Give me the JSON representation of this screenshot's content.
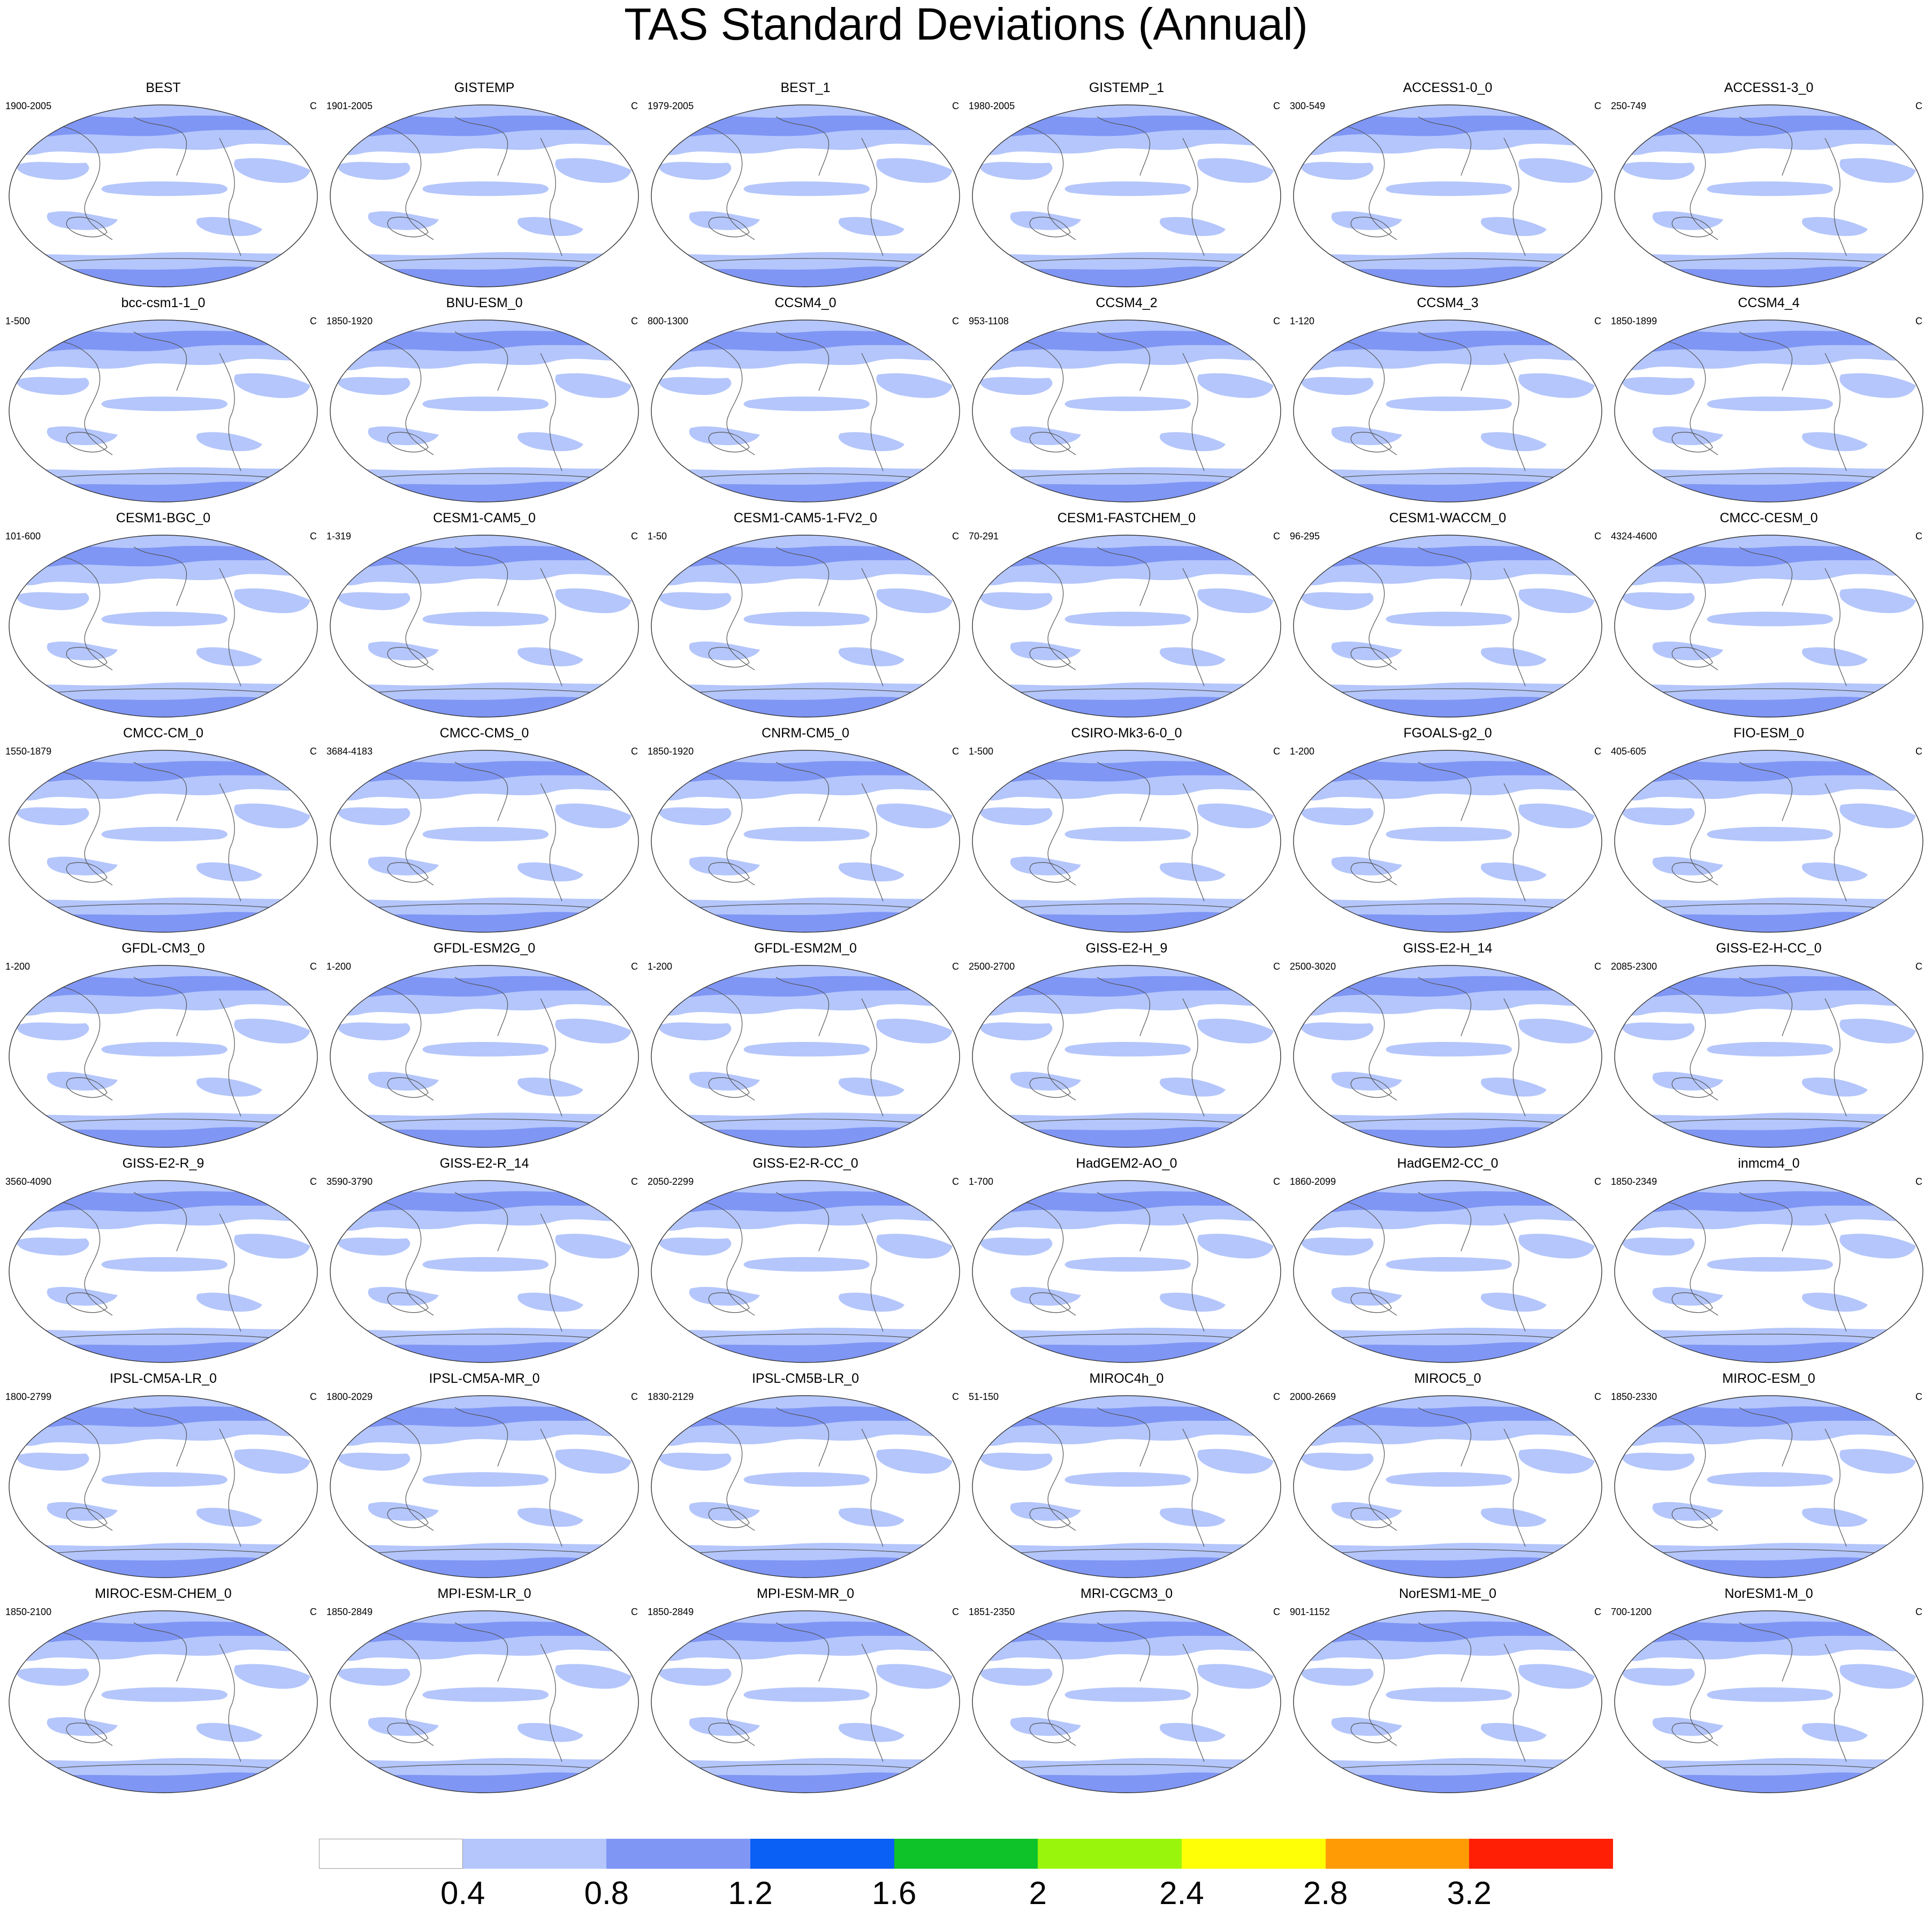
{
  "title": "TAS Standard Deviations (Annual)",
  "unit_label": "C",
  "colors": [
    "#ffffff",
    "#b4c6fb",
    "#7f96f5",
    "#0a5ff5",
    "#0ec22a",
    "#99f50c",
    "#ffff05",
    "#ff9b04",
    "#ff1f05"
  ],
  "colorbar_labels": [
    "0.4",
    "0.8",
    "1.2",
    "1.6",
    "2",
    "2.4",
    "2.8",
    "3.2"
  ],
  "panels": [
    {
      "name": "BEST",
      "period": "1900-2005"
    },
    {
      "name": "GISTEMP",
      "period": "1901-2005"
    },
    {
      "name": "BEST_1",
      "period": "1979-2005"
    },
    {
      "name": "GISTEMP_1",
      "period": "1980-2005"
    },
    {
      "name": "ACCESS1-0_0",
      "period": "300-549"
    },
    {
      "name": "ACCESS1-3_0",
      "period": "250-749"
    },
    {
      "name": "bcc-csm1-1_0",
      "period": "1-500"
    },
    {
      "name": "BNU-ESM_0",
      "period": "1850-1920"
    },
    {
      "name": "CCSM4_0",
      "period": "800-1300"
    },
    {
      "name": "CCSM4_2",
      "period": "953-1108"
    },
    {
      "name": "CCSM4_3",
      "period": "1-120"
    },
    {
      "name": "CCSM4_4",
      "period": "1850-1899"
    },
    {
      "name": "CESM1-BGC_0",
      "period": "101-600"
    },
    {
      "name": "CESM1-CAM5_0",
      "period": "1-319"
    },
    {
      "name": "CESM1-CAM5-1-FV2_0",
      "period": "1-50"
    },
    {
      "name": "CESM1-FASTCHEM_0",
      "period": "70-291"
    },
    {
      "name": "CESM1-WACCM_0",
      "period": "96-295"
    },
    {
      "name": "CMCC-CESM_0",
      "period": "4324-4600"
    },
    {
      "name": "CMCC-CM_0",
      "period": "1550-1879"
    },
    {
      "name": "CMCC-CMS_0",
      "period": "3684-4183"
    },
    {
      "name": "CNRM-CM5_0",
      "period": "1850-1920"
    },
    {
      "name": "CSIRO-Mk3-6-0_0",
      "period": "1-500"
    },
    {
      "name": "FGOALS-g2_0",
      "period": "1-200"
    },
    {
      "name": "FIO-ESM_0",
      "period": "405-605"
    },
    {
      "name": "GFDL-CM3_0",
      "period": "1-200"
    },
    {
      "name": "GFDL-ESM2G_0",
      "period": "1-200"
    },
    {
      "name": "GFDL-ESM2M_0",
      "period": "1-200"
    },
    {
      "name": "GISS-E2-H_9",
      "period": "2500-2700"
    },
    {
      "name": "GISS-E2-H_14",
      "period": "2500-3020"
    },
    {
      "name": "GISS-E2-H-CC_0",
      "period": "2085-2300"
    },
    {
      "name": "GISS-E2-R_9",
      "period": "3560-4090"
    },
    {
      "name": "GISS-E2-R_14",
      "period": "3590-3790"
    },
    {
      "name": "GISS-E2-R-CC_0",
      "period": "2050-2299"
    },
    {
      "name": "HadGEM2-AO_0",
      "period": "1-700"
    },
    {
      "name": "HadGEM2-CC_0",
      "period": "1860-2099"
    },
    {
      "name": "inmcm4_0",
      "period": "1850-2349"
    },
    {
      "name": "IPSL-CM5A-LR_0",
      "period": "1800-2799"
    },
    {
      "name": "IPSL-CM5A-MR_0",
      "period": "1800-2029"
    },
    {
      "name": "IPSL-CM5B-LR_0",
      "period": "1830-2129"
    },
    {
      "name": "MIROC4h_0",
      "period": "51-150"
    },
    {
      "name": "MIROC5_0",
      "period": "2000-2669"
    },
    {
      "name": "MIROC-ESM_0",
      "period": "1850-2330"
    },
    {
      "name": "MIROC-ESM-CHEM_0",
      "period": "1850-2100"
    },
    {
      "name": "MPI-ESM-LR_0",
      "period": "1850-2849"
    },
    {
      "name": "MPI-ESM-MR_0",
      "period": "1850-2849"
    },
    {
      "name": "MRI-CGCM3_0",
      "period": "1851-2350"
    },
    {
      "name": "NorESM1-ME_0",
      "period": "901-1152"
    },
    {
      "name": "NorESM1-M_0",
      "period": "700-1200"
    }
  ]
}
